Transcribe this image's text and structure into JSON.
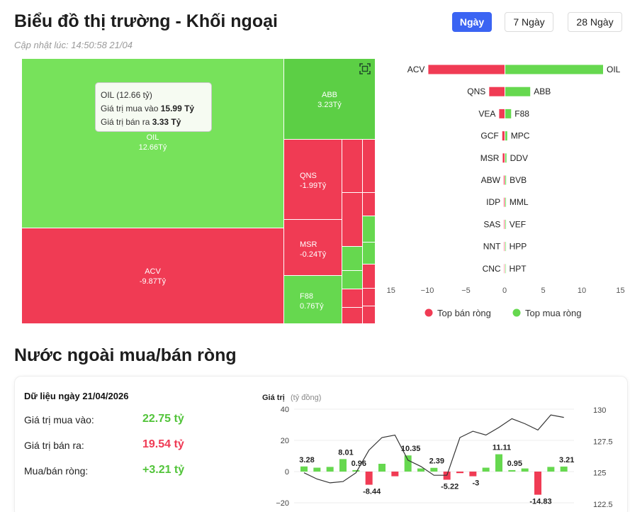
{
  "header": {
    "title": "Biểu đồ thị trường - Khối ngoại",
    "updated": "Cập nhật lúc: 14:50:58 21/04"
  },
  "range_buttons": [
    {
      "label": "Ngày",
      "active": true
    },
    {
      "label": "7 Ngày",
      "active": false
    },
    {
      "label": "28 Ngày",
      "active": false
    }
  ],
  "treemap": {
    "tiles": [
      {
        "code": "OIL",
        "value": "12.66Tỷ"
      },
      {
        "code": "ABB",
        "value": "3.23Tỷ"
      },
      {
        "code": "ACV",
        "value": "-9.87Tỷ"
      },
      {
        "code": "QNS",
        "value": "-1.99Tỷ"
      },
      {
        "code": "MSR",
        "value": "-0.24Tỷ"
      },
      {
        "code": "F88",
        "value": "0.76Tỷ"
      }
    ],
    "tooltip": {
      "title": "OIL (12.66 tỷ)",
      "buy_label": "Giá trị mua vào",
      "buy_value": "15.99 Tỷ",
      "sell_label": "Giá trị bán ra",
      "sell_value": "3.33 Tỷ"
    }
  },
  "chart_data": [
    {
      "type": "bar",
      "orientation": "horizontal",
      "sell_categories": [
        "ACV",
        "QNS",
        "VEA",
        "GCF",
        "MSR",
        "ABW",
        "IDP",
        "SAS",
        "NNT",
        "CNC"
      ],
      "buy_categories": [
        "OIL",
        "ABB",
        "F88",
        "MPC",
        "DDV",
        "BVB",
        "MML",
        "VEF",
        "HPP",
        "HPT"
      ],
      "series": [
        {
          "name": "Top bán ròng",
          "values": [
            -9.87,
            -1.99,
            -0.7,
            -0.3,
            -0.24,
            -0.1,
            -0.08,
            -0.06,
            -0.05,
            -0.04
          ]
        },
        {
          "name": "Top mua ròng",
          "values": [
            12.66,
            3.23,
            0.76,
            0.25,
            0.15,
            0.1,
            0.08,
            0.07,
            0.06,
            0.05
          ]
        }
      ],
      "xlim": [
        -15,
        15
      ],
      "x_ticks": [
        "−15",
        "−10",
        "−5",
        "0",
        "5",
        "10",
        "15"
      ],
      "legend_position": "bottom",
      "colors": {
        "sell": "#f03b54",
        "buy": "#66d84f"
      }
    },
    {
      "type": "bar",
      "ylabel": "Giá trị",
      "ylabel_unit": "(tỷ đồng)",
      "ylim": [
        -20,
        40
      ],
      "y_ticks": [
        "40",
        "20",
        "0",
        "−20"
      ],
      "y2lim": [
        122.5,
        130
      ],
      "y2_ticks": [
        "130",
        "127.5",
        "125",
        "122.5"
      ],
      "values": [
        3.28,
        2.5,
        3,
        8.01,
        0.96,
        -8.44,
        5,
        -3,
        10.35,
        2,
        2.39,
        -5.22,
        -1,
        -3,
        2.5,
        11.11,
        0.95,
        2,
        -14.83,
        3,
        3.21
      ],
      "value_labels": [
        "3.28",
        "",
        "",
        "8.01",
        "0.96",
        "-8.44",
        "",
        "",
        "10.35",
        "",
        "2.39",
        "-5.22",
        "",
        "-3",
        "",
        "11.11",
        "0.95",
        "",
        "-14.83",
        "",
        "3.21"
      ],
      "line": [
        125.0,
        124.5,
        124.2,
        124.3,
        125.0,
        126.8,
        127.8,
        128.0,
        126.0,
        125.5,
        124.8,
        124.8,
        127.8,
        128.3,
        128.0,
        128.6,
        129.3,
        128.9,
        128.4,
        129.6,
        129.4
      ],
      "colors": {
        "pos": "#66d84f",
        "neg": "#f03b54",
        "line": "#333333"
      }
    }
  ],
  "legend": {
    "sell": "Top bán ròng",
    "buy": "Top mua ròng"
  },
  "section2": {
    "title": "Nước ngoài mua/bán ròng",
    "card_header": "Dữ liệu ngày 21/04/2026",
    "rows": [
      {
        "label": "Giá trị mua vào:",
        "value": "22.75 tỷ"
      },
      {
        "label": "Giá trị bán ra:",
        "value": "19.54 tỷ"
      },
      {
        "label": "Mua/bán ròng:",
        "value": "+3.21 tỷ"
      }
    ]
  }
}
